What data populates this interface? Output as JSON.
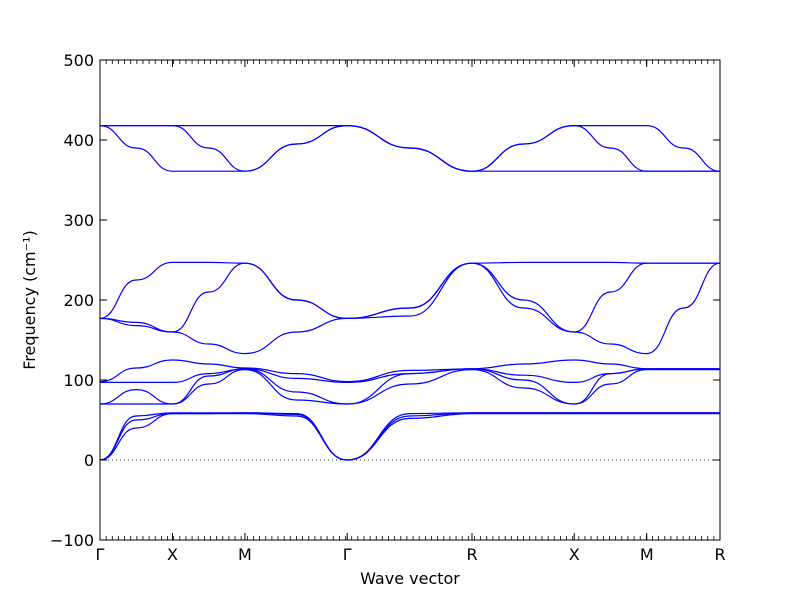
{
  "chart_data": {
    "type": "line",
    "xlabel": "Wave vector",
    "ylabel": "Frequency (cm⁻¹)",
    "ylim": [
      -100,
      500
    ],
    "yticks": [
      -100,
      0,
      100,
      200,
      300,
      400,
      500
    ],
    "grid": false,
    "legend": "none",
    "zero_line": true,
    "x_range": [
      0,
      7.7
    ],
    "kpoints": [
      {
        "label": "Γ",
        "x": 0.0
      },
      {
        "label": "X",
        "x": 0.9
      },
      {
        "label": "M",
        "x": 1.8
      },
      {
        "label": "Γ",
        "x": 3.07
      },
      {
        "label": "R",
        "x": 4.62
      },
      {
        "label": "X",
        "x": 5.89
      },
      {
        "label": "M",
        "x": 6.79
      },
      {
        "label": "R",
        "x": 7.7
      }
    ],
    "line_color": "#0000ff",
    "series": [
      {
        "x": [
          0,
          0.45,
          0.9,
          1.35,
          1.8,
          2.44,
          3.07,
          3.85,
          4.62,
          5.26,
          5.89,
          6.34,
          6.79,
          7.25,
          7.7
        ],
        "y": [
          0,
          40,
          58,
          58,
          58,
          55,
          0,
          52,
          58,
          58,
          58,
          58,
          58,
          58,
          58
        ]
      },
      {
        "x": [
          0,
          0.45,
          0.9,
          1.35,
          1.8,
          2.44,
          3.07,
          3.85,
          4.62,
          5.26,
          5.89,
          6.34,
          6.79,
          7.25,
          7.7
        ],
        "y": [
          0,
          50,
          58,
          58,
          59,
          57,
          0,
          55,
          59,
          59,
          59,
          59,
          59,
          59,
          59
        ]
      },
      {
        "x": [
          0,
          0.45,
          0.9,
          1.35,
          1.8,
          2.44,
          3.07,
          3.85,
          4.62,
          5.26,
          5.89,
          6.34,
          6.79,
          7.25,
          7.7
        ],
        "y": [
          0,
          55,
          59,
          59,
          59,
          58,
          0,
          58,
          59,
          59,
          59,
          59,
          59,
          59,
          59
        ]
      },
      {
        "x": [
          0,
          0.45,
          0.9,
          1.35,
          1.8,
          2.44,
          3.07,
          3.85,
          4.62,
          5.26,
          5.89,
          6.34,
          6.79,
          7.25,
          7.7
        ],
        "y": [
          70,
          70,
          70,
          95,
          113,
          75,
          70,
          95,
          113,
          90,
          70,
          95,
          113,
          113,
          113
        ]
      },
      {
        "x": [
          0,
          0.45,
          0.9,
          1.35,
          1.8,
          2.44,
          3.07,
          3.85,
          4.62,
          5.26,
          5.89,
          6.34,
          6.79,
          7.25,
          7.7
        ],
        "y": [
          70,
          88,
          70,
          105,
          114,
          85,
          70,
          108,
          114,
          100,
          70,
          108,
          114,
          114,
          114
        ]
      },
      {
        "x": [
          0,
          0.45,
          0.9,
          1.35,
          1.8,
          2.44,
          3.07,
          3.85,
          4.62,
          5.26,
          5.89,
          6.34,
          6.79,
          7.25,
          7.7
        ],
        "y": [
          97,
          97,
          97,
          108,
          114,
          102,
          97,
          108,
          114,
          106,
          97,
          108,
          114,
          114,
          114
        ]
      },
      {
        "x": [
          0,
          0.45,
          0.9,
          1.35,
          1.8,
          2.44,
          3.07,
          3.85,
          4.62,
          5.26,
          5.89,
          6.34,
          6.79,
          7.25,
          7.7
        ],
        "y": [
          98,
          115,
          125,
          120,
          115,
          108,
          98,
          112,
          114,
          120,
          125,
          120,
          114,
          114,
          114
        ]
      },
      {
        "x": [
          0,
          0.45,
          0.9,
          1.35,
          1.8,
          2.44,
          3.07,
          3.85,
          4.62,
          5.26,
          5.89,
          6.34,
          6.79,
          7.25,
          7.7
        ],
        "y": [
          177,
          168,
          160,
          145,
          133,
          160,
          177,
          180,
          246,
          190,
          160,
          145,
          133,
          190,
          246
        ]
      },
      {
        "x": [
          0,
          0.45,
          0.9,
          1.35,
          1.8,
          2.44,
          3.07,
          3.85,
          4.62,
          5.26,
          5.89,
          6.34,
          6.79,
          7.25,
          7.7
        ],
        "y": [
          177,
          172,
          160,
          210,
          246,
          200,
          177,
          190,
          246,
          200,
          160,
          210,
          246,
          246,
          246
        ]
      },
      {
        "x": [
          0,
          0.45,
          0.9,
          1.35,
          1.8,
          2.44,
          3.07,
          3.85,
          4.62,
          5.26,
          5.89,
          6.34,
          6.79,
          7.25,
          7.7
        ],
        "y": [
          177,
          225,
          247,
          247,
          246,
          200,
          177,
          190,
          246,
          247,
          247,
          247,
          246,
          246,
          246
        ]
      },
      {
        "x": [
          0,
          0.45,
          0.9,
          1.35,
          1.8,
          2.44,
          3.07,
          3.85,
          4.62,
          5.26,
          5.89,
          6.34,
          6.79,
          7.25,
          7.7
        ],
        "y": [
          418,
          390,
          361,
          361,
          361,
          395,
          418,
          390,
          361,
          361,
          361,
          361,
          361,
          361,
          361
        ]
      },
      {
        "x": [
          0,
          0.45,
          0.9,
          1.35,
          1.8,
          2.44,
          3.07,
          3.85,
          4.62,
          5.26,
          5.89,
          6.34,
          6.79,
          7.25,
          7.7
        ],
        "y": [
          418,
          418,
          418,
          390,
          361,
          395,
          418,
          390,
          361,
          395,
          418,
          390,
          361,
          361,
          361
        ]
      },
      {
        "x": [
          0,
          0.45,
          0.9,
          1.35,
          1.8,
          2.44,
          3.07,
          3.85,
          4.62,
          5.26,
          5.89,
          6.34,
          6.79,
          7.25,
          7.7
        ],
        "y": [
          418,
          418,
          418,
          418,
          418,
          418,
          418,
          390,
          361,
          395,
          418,
          418,
          418,
          390,
          361
        ]
      }
    ]
  }
}
